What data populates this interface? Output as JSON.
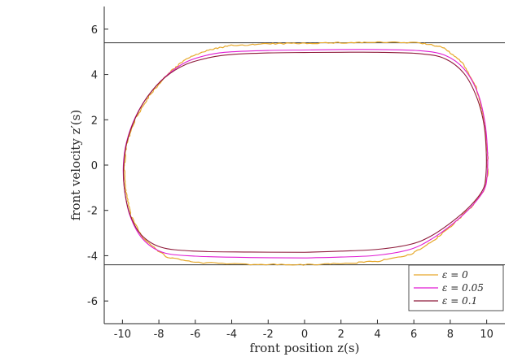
{
  "chart_data": {
    "type": "line",
    "title": "",
    "xlabel": "front position z(s)",
    "ylabel": "front velocity z′(s)",
    "xlim": [
      -11,
      11
    ],
    "ylim": [
      -7,
      7
    ],
    "xticks": [
      "-10",
      "-8",
      "-6",
      "-4",
      "-2",
      "0",
      "2",
      "4",
      "6",
      "8",
      "10"
    ],
    "yticks": [
      "6",
      "4",
      "2",
      "0",
      "-2",
      "-4",
      "-6"
    ],
    "grid": false,
    "legend_position": "bottom-right",
    "reference_lines": [
      5.4,
      -4.4
    ],
    "series": [
      {
        "name": "ε = 0",
        "color": "#e6a82a",
        "noisy": true,
        "points": [
          [
            0,
            -4.4
          ],
          [
            -3,
            -4.38
          ],
          [
            -6,
            -4.3
          ],
          [
            -7.6,
            -4.05
          ],
          [
            -8.8,
            -3.3
          ],
          [
            -9.55,
            -2.2
          ],
          [
            -9.85,
            -1.0
          ],
          [
            -9.9,
            0.0
          ],
          [
            -9.75,
            1.0
          ],
          [
            -9.25,
            2.1
          ],
          [
            -8.55,
            3.05
          ],
          [
            -7.6,
            3.95
          ],
          [
            -6.5,
            4.7
          ],
          [
            -5.2,
            5.1
          ],
          [
            -4.0,
            5.28
          ],
          [
            -2.0,
            5.35
          ],
          [
            0,
            5.38
          ],
          [
            2.0,
            5.4
          ],
          [
            4.0,
            5.42
          ],
          [
            6.3,
            5.4
          ],
          [
            7.6,
            5.2
          ],
          [
            8.7,
            4.5
          ],
          [
            9.45,
            3.4
          ],
          [
            9.85,
            2.0
          ],
          [
            10.05,
            0.5
          ],
          [
            10.05,
            -0.5
          ],
          [
            9.85,
            -1.1
          ],
          [
            9.2,
            -1.8
          ],
          [
            8.2,
            -2.6
          ],
          [
            7.0,
            -3.4
          ],
          [
            5.8,
            -3.95
          ],
          [
            4.0,
            -4.25
          ],
          [
            2.0,
            -4.35
          ],
          [
            0,
            -4.4
          ]
        ]
      },
      {
        "name": "ε = 0.05",
        "color": "#e01bd3",
        "noisy": false,
        "points": [
          [
            0,
            -4.1
          ],
          [
            -3,
            -4.08
          ],
          [
            -6,
            -4.02
          ],
          [
            -7.8,
            -3.85
          ],
          [
            -8.9,
            -3.25
          ],
          [
            -9.6,
            -2.2
          ],
          [
            -9.9,
            -1.0
          ],
          [
            -9.95,
            0.0
          ],
          [
            -9.78,
            1.0
          ],
          [
            -9.3,
            2.1
          ],
          [
            -8.6,
            3.05
          ],
          [
            -7.65,
            3.9
          ],
          [
            -6.5,
            4.55
          ],
          [
            -5.2,
            4.88
          ],
          [
            -4.0,
            5.0
          ],
          [
            -2.0,
            5.06
          ],
          [
            0,
            5.08
          ],
          [
            2.0,
            5.1
          ],
          [
            4.0,
            5.1
          ],
          [
            6.3,
            5.05
          ],
          [
            7.7,
            4.85
          ],
          [
            8.75,
            4.25
          ],
          [
            9.5,
            3.2
          ],
          [
            9.9,
            1.9
          ],
          [
            10.05,
            0.5
          ],
          [
            10.02,
            -0.5
          ],
          [
            9.85,
            -1.1
          ],
          [
            9.2,
            -1.8
          ],
          [
            8.2,
            -2.55
          ],
          [
            7.0,
            -3.25
          ],
          [
            5.8,
            -3.72
          ],
          [
            4.0,
            -3.98
          ],
          [
            2.0,
            -4.06
          ],
          [
            0,
            -4.1
          ]
        ]
      },
      {
        "name": "ε = 0.1",
        "color": "#8e1a3a",
        "noisy": false,
        "points": [
          [
            0,
            -3.85
          ],
          [
            -3,
            -3.84
          ],
          [
            -6,
            -3.8
          ],
          [
            -7.9,
            -3.62
          ],
          [
            -9.0,
            -3.05
          ],
          [
            -9.62,
            -2.1
          ],
          [
            -9.9,
            -1.0
          ],
          [
            -9.93,
            0.0
          ],
          [
            -9.76,
            1.0
          ],
          [
            -9.28,
            2.1
          ],
          [
            -8.6,
            3.05
          ],
          [
            -7.65,
            3.88
          ],
          [
            -6.5,
            4.45
          ],
          [
            -5.2,
            4.75
          ],
          [
            -4.0,
            4.88
          ],
          [
            -2.0,
            4.95
          ],
          [
            0,
            4.97
          ],
          [
            2.0,
            4.98
          ],
          [
            4.0,
            4.98
          ],
          [
            6.3,
            4.92
          ],
          [
            7.7,
            4.7
          ],
          [
            8.75,
            4.05
          ],
          [
            9.45,
            3.0
          ],
          [
            9.85,
            1.8
          ],
          [
            9.98,
            0.5
          ],
          [
            9.95,
            -0.5
          ],
          [
            9.78,
            -1.1
          ],
          [
            9.1,
            -1.8
          ],
          [
            8.1,
            -2.5
          ],
          [
            6.9,
            -3.15
          ],
          [
            5.8,
            -3.5
          ],
          [
            4.0,
            -3.72
          ],
          [
            2.0,
            -3.8
          ],
          [
            0,
            -3.85
          ]
        ]
      }
    ]
  }
}
